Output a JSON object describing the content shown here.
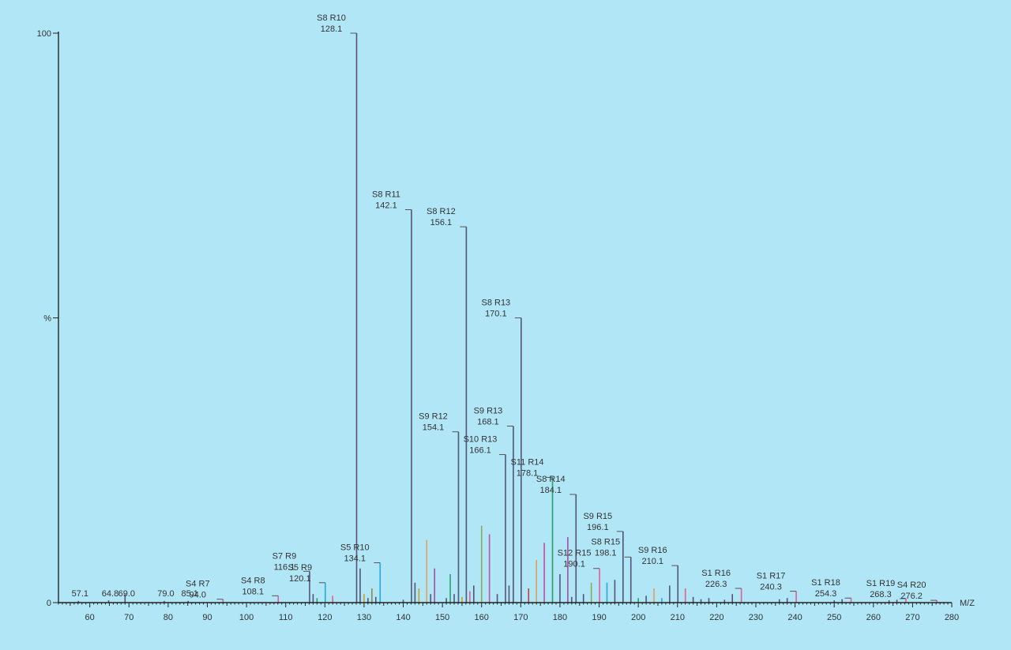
{
  "chart_data": {
    "type": "bar",
    "title": "",
    "xlabel": "M/Z",
    "ylabel": "%",
    "xlim": [
      52,
      280
    ],
    "ylim": [
      0,
      100
    ],
    "x_ticks": [
      "60",
      "70",
      "80",
      "90",
      "100",
      "110",
      "120",
      "130",
      "140",
      "150",
      "160",
      "170",
      "180",
      "190",
      "200",
      "210",
      "220",
      "230",
      "240",
      "250",
      "260",
      "270",
      "280"
    ],
    "y_ticks": [
      {
        "value": 0,
        "label": "0"
      },
      {
        "value": 50,
        "label": "%"
      },
      {
        "value": 100,
        "label": "100"
      }
    ],
    "grid": false,
    "peaks": [
      {
        "mz": 128.1,
        "y": 100,
        "label": "S8 R10",
        "value_label": "128.1",
        "color": "#54547a"
      },
      {
        "mz": 142.1,
        "y": 69,
        "label": "S8 R11",
        "value_label": "142.1",
        "color": "#54547a"
      },
      {
        "mz": 156.1,
        "y": 66,
        "label": "S8 R12",
        "value_label": "156.1",
        "color": "#54547a"
      },
      {
        "mz": 170.1,
        "y": 50,
        "label": "S8 R13",
        "value_label": "170.1",
        "color": "#54547a"
      },
      {
        "mz": 154.1,
        "y": 30,
        "label": "S9 R12",
        "value_label": "154.1",
        "color": "#54547a"
      },
      {
        "mz": 168.1,
        "y": 31,
        "label": "S9 R13",
        "value_label": "168.1",
        "color": "#54547a"
      },
      {
        "mz": 166.1,
        "y": 26,
        "label": "S10 R13",
        "value_label": "166.1",
        "color": "#54547a"
      },
      {
        "mz": 178.1,
        "y": 22,
        "label": "S11 R14",
        "value_label": "178.1",
        "color": "#2e9e6e"
      },
      {
        "mz": 184.1,
        "y": 19,
        "label": "S8 R14",
        "value_label": "184.1",
        "color": "#54547a"
      },
      {
        "mz": 196.1,
        "y": 12.5,
        "label": "S9 R15",
        "value_label": "196.1",
        "color": "#54547a"
      },
      {
        "mz": 190.1,
        "y": 6,
        "label": "S12 R15",
        "value_label": "190.1",
        "color": "#e06090"
      },
      {
        "mz": 198.1,
        "y": 8,
        "label": "S8 R15",
        "value_label": "198.1",
        "color": "#54547a"
      },
      {
        "mz": 210.1,
        "y": 6.5,
        "label": "S9 R16",
        "value_label": "210.1",
        "color": "#54547a"
      },
      {
        "mz": 116.1,
        "y": 5.5,
        "label": "S7 R9",
        "value_label": "116.1",
        "color": "#54547a"
      },
      {
        "mz": 120.1,
        "y": 3.5,
        "label": "S5 R9",
        "value_label": "120.1",
        "color": "#2aa8d8"
      },
      {
        "mz": 134.1,
        "y": 7,
        "label": "S5 R10",
        "value_label": "134.1",
        "color": "#2aa8d8"
      },
      {
        "mz": 108.1,
        "y": 1.2,
        "label": "S4 R8",
        "value_label": "108.1",
        "color": "#e06090"
      },
      {
        "mz": 94.0,
        "y": 0.6,
        "label": "S4 R7",
        "value_label": "94.0",
        "color": "#e06090"
      },
      {
        "mz": 226.3,
        "y": 2.5,
        "label": "S1 R16",
        "value_label": "226.3",
        "color": "#e06090"
      },
      {
        "mz": 240.3,
        "y": 2.0,
        "label": "S1 R17",
        "value_label": "240.3",
        "color": "#e06090"
      },
      {
        "mz": 254.3,
        "y": 0.8,
        "label": "S1 R18",
        "value_label": "254.3",
        "color": "#e06090"
      },
      {
        "mz": 268.3,
        "y": 0.7,
        "label": "S1 R19",
        "value_label": "268.3",
        "color": "#e06090"
      },
      {
        "mz": 276.2,
        "y": 0.4,
        "label": "S4 R20",
        "value_label": "276.2",
        "color": "#e06090"
      },
      {
        "mz": 57.1,
        "y": 0.3,
        "label": "",
        "value_label": "57.1",
        "color": "#54547a"
      },
      {
        "mz": 64.8,
        "y": 0.4,
        "label": "",
        "value_label": "64.8",
        "color": "#54547a"
      },
      {
        "mz": 69.0,
        "y": 1.5,
        "label": "",
        "value_label": "69.0",
        "color": "#54547a"
      },
      {
        "mz": 79.0,
        "y": 0.3,
        "label": "",
        "value_label": "79.0",
        "color": "#54547a"
      },
      {
        "mz": 85.1,
        "y": 0.3,
        "label": "",
        "value_label": "85.1",
        "color": "#54547a"
      }
    ],
    "minor_peaks": [
      {
        "mz": 117,
        "y": 1.5,
        "color": "#54547a"
      },
      {
        "mz": 118,
        "y": 0.8,
        "color": "#2e9e6e"
      },
      {
        "mz": 122,
        "y": 1.2,
        "color": "#e06090"
      },
      {
        "mz": 129,
        "y": 6,
        "color": "#54547a"
      },
      {
        "mz": 130,
        "y": 1.5,
        "color": "#c4a030"
      },
      {
        "mz": 131,
        "y": 0.8,
        "color": "#54547a"
      },
      {
        "mz": 132,
        "y": 2.5,
        "color": "#8a8a50"
      },
      {
        "mz": 133,
        "y": 1,
        "color": "#54547a"
      },
      {
        "mz": 140,
        "y": 0.5,
        "color": "#54547a"
      },
      {
        "mz": 143,
        "y": 3.5,
        "color": "#54547a"
      },
      {
        "mz": 144,
        "y": 2.5,
        "color": "#c4a030"
      },
      {
        "mz": 146,
        "y": 11,
        "color": "#e0a060"
      },
      {
        "mz": 147,
        "y": 1.5,
        "color": "#54547a"
      },
      {
        "mz": 148,
        "y": 6,
        "color": "#a050a0"
      },
      {
        "mz": 151,
        "y": 0.8,
        "color": "#54547a"
      },
      {
        "mz": 152,
        "y": 5,
        "color": "#2e9e6e"
      },
      {
        "mz": 153,
        "y": 1.5,
        "color": "#54547a"
      },
      {
        "mz": 155,
        "y": 1,
        "color": "#c4a030"
      },
      {
        "mz": 157,
        "y": 2,
        "color": "#e06090"
      },
      {
        "mz": 158,
        "y": 3,
        "color": "#54547a"
      },
      {
        "mz": 160,
        "y": 13.5,
        "color": "#8aa860"
      },
      {
        "mz": 162,
        "y": 12,
        "color": "#c050a0"
      },
      {
        "mz": 164,
        "y": 1.5,
        "color": "#54547a"
      },
      {
        "mz": 167,
        "y": 3,
        "color": "#54547a"
      },
      {
        "mz": 172,
        "y": 2.5,
        "color": "#c04040"
      },
      {
        "mz": 174,
        "y": 7.5,
        "color": "#e0a060"
      },
      {
        "mz": 176,
        "y": 10.5,
        "color": "#c050a0"
      },
      {
        "mz": 180,
        "y": 5,
        "color": "#54547a"
      },
      {
        "mz": 182,
        "y": 11.5,
        "color": "#a050a0"
      },
      {
        "mz": 183,
        "y": 1,
        "color": "#54547a"
      },
      {
        "mz": 186,
        "y": 1.5,
        "color": "#54547a"
      },
      {
        "mz": 188,
        "y": 3.5,
        "color": "#8aa860"
      },
      {
        "mz": 192,
        "y": 3.5,
        "color": "#2aa8d8"
      },
      {
        "mz": 194,
        "y": 4,
        "color": "#54547a"
      },
      {
        "mz": 200,
        "y": 0.8,
        "color": "#2e9e6e"
      },
      {
        "mz": 202,
        "y": 1.2,
        "color": "#54547a"
      },
      {
        "mz": 204,
        "y": 2.5,
        "color": "#e0a060"
      },
      {
        "mz": 206,
        "y": 0.8,
        "color": "#2aa8d8"
      },
      {
        "mz": 208,
        "y": 3,
        "color": "#54547a"
      },
      {
        "mz": 212,
        "y": 2.5,
        "color": "#e06090"
      },
      {
        "mz": 214,
        "y": 1,
        "color": "#54547a"
      },
      {
        "mz": 216,
        "y": 0.6,
        "color": "#54547a"
      },
      {
        "mz": 218,
        "y": 0.8,
        "color": "#54547a"
      },
      {
        "mz": 222,
        "y": 0.5,
        "color": "#54547a"
      },
      {
        "mz": 224,
        "y": 1.5,
        "color": "#54547a"
      },
      {
        "mz": 236,
        "y": 0.6,
        "color": "#54547a"
      },
      {
        "mz": 238,
        "y": 0.8,
        "color": "#54547a"
      },
      {
        "mz": 250,
        "y": 0.4,
        "color": "#54547a"
      },
      {
        "mz": 252,
        "y": 0.6,
        "color": "#54547a"
      },
      {
        "mz": 264,
        "y": 0.4,
        "color": "#54547a"
      },
      {
        "mz": 266,
        "y": 0.5,
        "color": "#54547a"
      }
    ]
  }
}
